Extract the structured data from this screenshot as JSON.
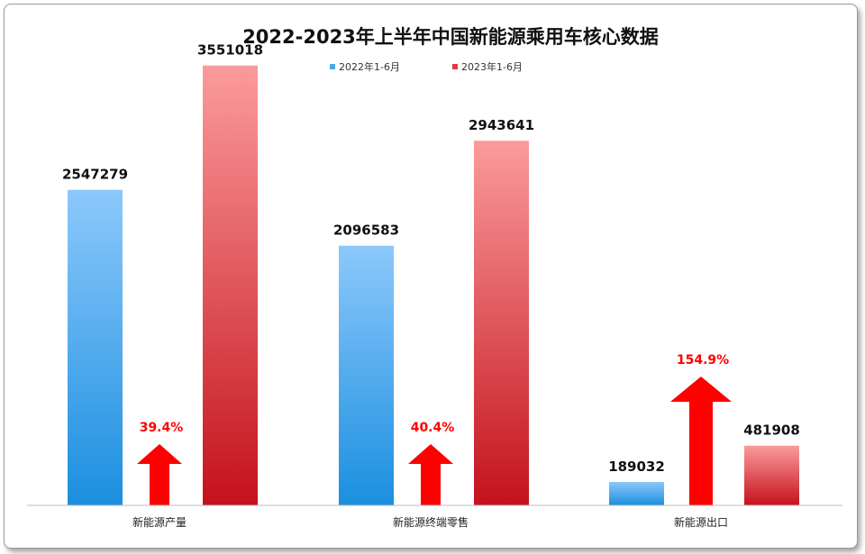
{
  "chart_data": {
    "type": "bar",
    "title": "2022-2023年上半年中国新能源乘用车核心数据",
    "legend_position": "top",
    "grid": false,
    "categories": [
      "新能源产量",
      "新能源终端零售",
      "新能源出口"
    ],
    "series": [
      {
        "name": "2022年1-6月",
        "values": [
          2547279,
          2096583,
          189032
        ],
        "color": "#4aa8ee"
      },
      {
        "name": "2023年1-6月",
        "values": [
          3551018,
          2943641,
          481908
        ],
        "color": "#e0393f"
      }
    ],
    "growth": [
      "39.4%",
      "40.4%",
      "154.9%"
    ],
    "growth_color": "#ff0000",
    "ylim": [
      0,
      4000000
    ]
  }
}
